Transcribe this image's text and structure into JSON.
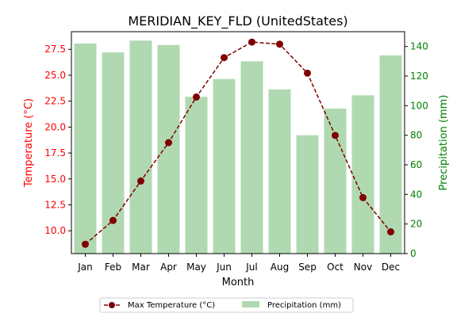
{
  "chart_data": {
    "type": "bar",
    "title": "MERIDIAN_KEY_FLD (UnitedStates)",
    "xlabel": "Month",
    "ylabel_left": "Temperature (°C)",
    "ylabel_right": "Precipitation (mm)",
    "categories": [
      "Jan",
      "Feb",
      "Mar",
      "Apr",
      "May",
      "Jun",
      "Jul",
      "Aug",
      "Sep",
      "Oct",
      "Nov",
      "Dec"
    ],
    "series": [
      {
        "name": "Max Temperature (°C)",
        "type": "line",
        "axis": "left",
        "color": "#800000",
        "values": [
          8.7,
          11.0,
          14.8,
          18.5,
          22.9,
          26.7,
          28.2,
          28.0,
          25.2,
          19.2,
          13.2,
          9.9
        ]
      },
      {
        "name": "Precipitation (mm)",
        "type": "bar",
        "axis": "right",
        "color": "#b0d9b1",
        "values": [
          142,
          136,
          144,
          141,
          106,
          118,
          130,
          111,
          80,
          98,
          107,
          134
        ]
      }
    ],
    "ylim_left": [
      7.8,
      29.2
    ],
    "ylim_right": [
      0,
      150
    ],
    "yticks_left": [
      "10.0",
      "12.5",
      "15.0",
      "17.5",
      "20.0",
      "22.5",
      "25.0",
      "27.5"
    ],
    "yticks_right": [
      "0",
      "20",
      "40",
      "60",
      "80",
      "100",
      "120",
      "140"
    ],
    "grid": false,
    "legend_position": "bottom-center"
  }
}
